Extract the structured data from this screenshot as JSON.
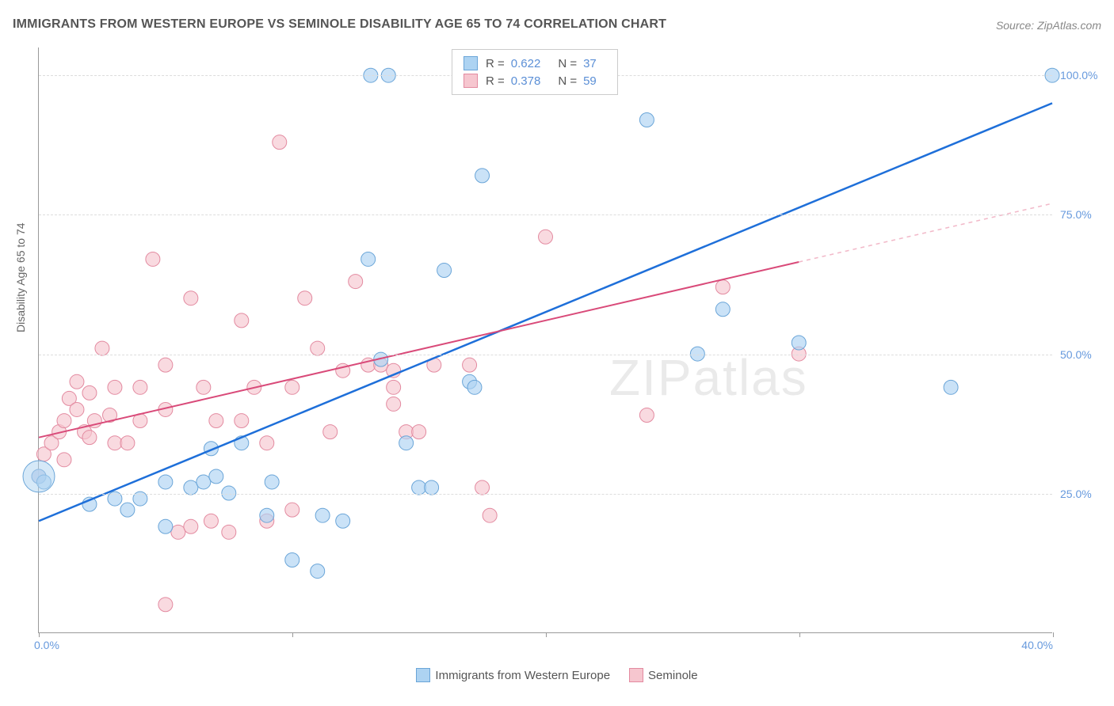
{
  "title": "IMMIGRANTS FROM WESTERN EUROPE VS SEMINOLE DISABILITY AGE 65 TO 74 CORRELATION CHART",
  "source": "Source: ZipAtlas.com",
  "ylabel": "Disability Age 65 to 74",
  "watermark": "ZIPatlas",
  "chart": {
    "type": "scatter",
    "xlim": [
      0,
      40
    ],
    "ylim": [
      0,
      105
    ],
    "xticks": [
      0,
      20,
      40
    ],
    "xtick_labels": [
      "0.0%",
      "",
      "40.0%"
    ],
    "xtick_minor": [
      10,
      30
    ],
    "yticks": [
      25,
      50,
      75,
      100
    ],
    "ytick_labels": [
      "25.0%",
      "50.0%",
      "75.0%",
      "100.0%"
    ],
    "background_color": "#ffffff",
    "grid_color": "#dddddd",
    "axis_color": "#999999",
    "series": [
      {
        "name": "Immigrants from Western Europe",
        "color_fill": "#add3f2",
        "color_stroke": "#6aa5d8",
        "marker_opacity": 0.65,
        "marker_radius": 9,
        "r_value": "0.622",
        "n_value": "37",
        "trend_color": "#1e6fd9",
        "trend_dash_color": "#a8c7ea",
        "trend_width": 2.5,
        "trend": {
          "x1": 0,
          "y1": 20,
          "x2": 40,
          "y2": 95
        },
        "trend_solid_xmax": 40,
        "points": [
          [
            0,
            28
          ],
          [
            0.2,
            27
          ],
          [
            2,
            23
          ],
          [
            3,
            24
          ],
          [
            3.5,
            22
          ],
          [
            4,
            24
          ],
          [
            5,
            27
          ],
          [
            6,
            26
          ],
          [
            6.5,
            27
          ],
          [
            7,
            28
          ],
          [
            7.5,
            25
          ],
          [
            8,
            34
          ],
          [
            9,
            21
          ],
          [
            10,
            13
          ],
          [
            11,
            11
          ],
          [
            11.2,
            21
          ],
          [
            12,
            20
          ],
          [
            13,
            67
          ],
          [
            13.1,
            100
          ],
          [
            13.8,
            100
          ],
          [
            13.5,
            49
          ],
          [
            15,
            26
          ],
          [
            16,
            65
          ],
          [
            17,
            45
          ],
          [
            17.2,
            44
          ],
          [
            17.5,
            82
          ],
          [
            24,
            92
          ],
          [
            26,
            50
          ],
          [
            27,
            58
          ],
          [
            30,
            52
          ],
          [
            36,
            44
          ],
          [
            40,
            100
          ],
          [
            5,
            19
          ],
          [
            6.8,
            33
          ],
          [
            9.2,
            27
          ],
          [
            14.5,
            34
          ],
          [
            15.5,
            26
          ]
        ]
      },
      {
        "name": "Seminole",
        "color_fill": "#f6c6cf",
        "color_stroke": "#e38aa0",
        "marker_opacity": 0.65,
        "marker_radius": 9,
        "r_value": "0.378",
        "n_value": "59",
        "trend_color": "#d94a79",
        "trend_dash_color": "#f2b9c9",
        "trend_width": 2,
        "trend": {
          "x1": 0,
          "y1": 35,
          "x2": 40,
          "y2": 77
        },
        "trend_solid_xmax": 30,
        "points": [
          [
            0,
            28
          ],
          [
            0.2,
            32
          ],
          [
            0.5,
            34
          ],
          [
            0.8,
            36
          ],
          [
            1,
            31
          ],
          [
            1,
            38
          ],
          [
            1.2,
            42
          ],
          [
            1.5,
            40
          ],
          [
            1.5,
            45
          ],
          [
            1.8,
            36
          ],
          [
            2,
            43
          ],
          [
            2,
            35
          ],
          [
            2.2,
            38
          ],
          [
            2.5,
            51
          ],
          [
            2.8,
            39
          ],
          [
            3,
            44
          ],
          [
            3,
            34
          ],
          [
            3.5,
            34
          ],
          [
            4,
            38
          ],
          [
            4,
            44
          ],
          [
            4.5,
            67
          ],
          [
            5,
            5
          ],
          [
            5,
            48
          ],
          [
            5,
            40
          ],
          [
            5.5,
            18
          ],
          [
            6,
            60
          ],
          [
            6,
            19
          ],
          [
            6.5,
            44
          ],
          [
            6.8,
            20
          ],
          [
            7,
            38
          ],
          [
            7.5,
            18
          ],
          [
            8,
            38
          ],
          [
            8,
            56
          ],
          [
            8.5,
            44
          ],
          [
            9,
            34
          ],
          [
            9,
            20
          ],
          [
            9.5,
            88
          ],
          [
            10,
            44
          ],
          [
            10,
            22
          ],
          [
            10.5,
            60
          ],
          [
            11,
            51
          ],
          [
            11.5,
            36
          ],
          [
            12,
            47
          ],
          [
            12.5,
            63
          ],
          [
            13,
            48
          ],
          [
            13.5,
            48
          ],
          [
            14,
            47
          ],
          [
            14,
            44
          ],
          [
            14.5,
            36
          ],
          [
            15,
            36
          ],
          [
            15.6,
            48
          ],
          [
            17,
            48
          ],
          [
            17.5,
            26
          ],
          [
            17.8,
            21
          ],
          [
            20,
            71
          ],
          [
            24,
            39
          ],
          [
            27,
            62
          ],
          [
            30,
            50
          ],
          [
            14,
            41
          ]
        ]
      }
    ]
  },
  "legend_bottom": [
    {
      "swatch_fill": "#add3f2",
      "swatch_stroke": "#6aa5d8",
      "label": "Immigrants from Western Europe"
    },
    {
      "swatch_fill": "#f6c6cf",
      "swatch_stroke": "#e38aa0",
      "label": "Seminole"
    }
  ]
}
